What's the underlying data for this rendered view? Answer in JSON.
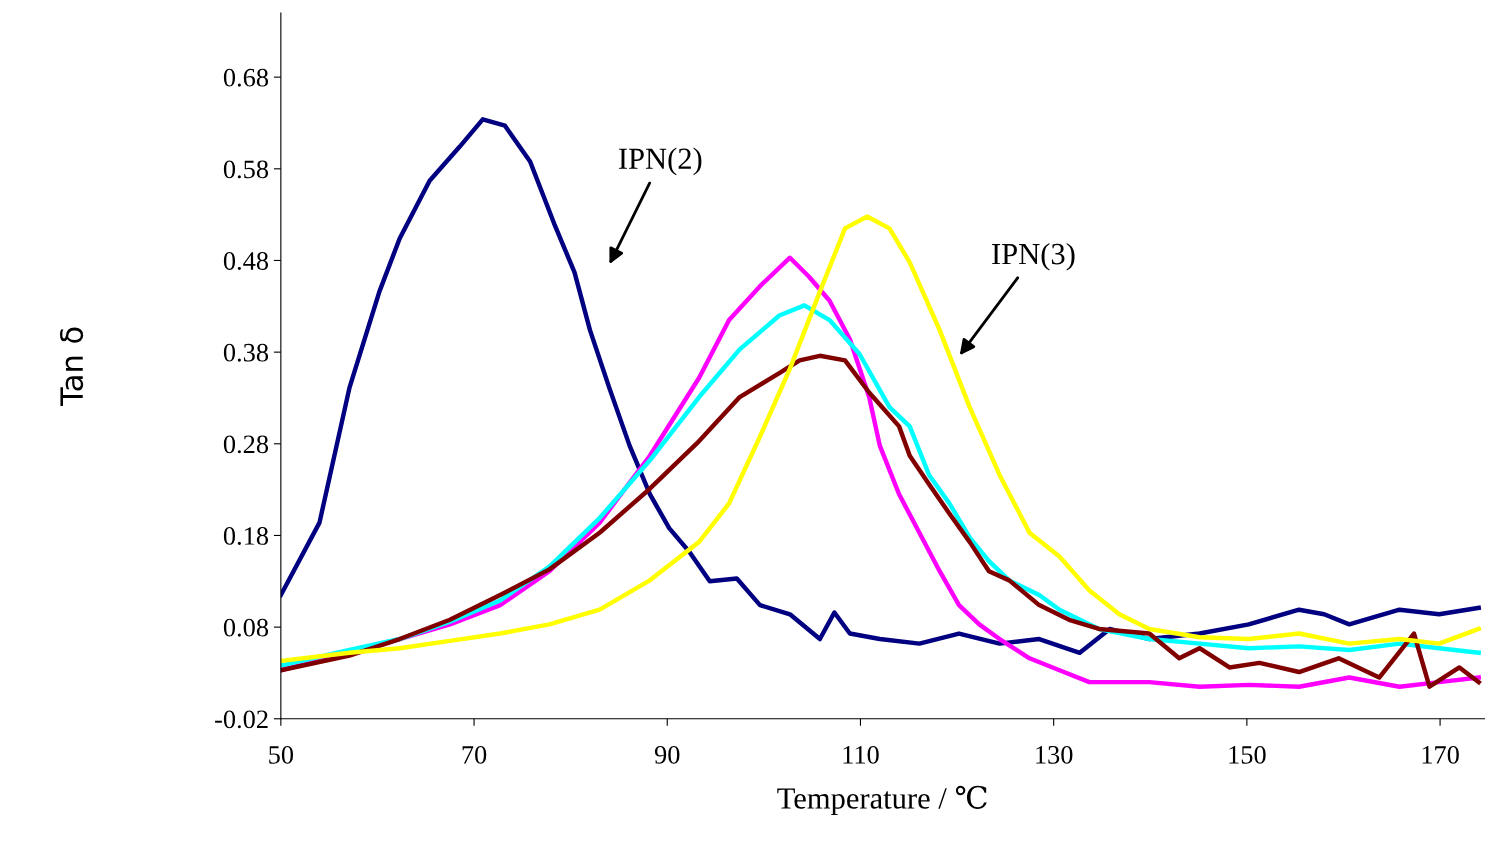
{
  "chart_data": {
    "type": "line",
    "xlabel": "Temperature / ℃",
    "ylabel": "Tan δ",
    "xlim": [
      50,
      174.6
    ],
    "ylim": [
      -0.02,
      0.75
    ],
    "xticks": [
      50,
      70,
      90,
      110,
      130,
      150,
      170
    ],
    "yticks": [
      -0.02,
      0.08,
      0.18,
      0.28,
      0.38,
      0.48,
      0.58,
      0.68
    ],
    "grid": false,
    "marker": "none",
    "line_style": "solid",
    "annotations": [
      "IPN(2)",
      "IPN(3)"
    ],
    "series": [
      {
        "color": "#000080",
        "x": [
          50,
          54,
          57.1,
          60.2,
          62.3,
          65.4,
          68.5,
          70.9,
          73.2,
          75.8,
          78.3,
          80.4,
          82,
          84,
          86.1,
          88.2,
          90.2,
          92.3,
          94.4,
          97.2,
          99.6,
          102.7,
          105.8,
          107.3,
          108.9,
          112,
          116.1,
          120.2,
          124.4,
          128.5,
          132.7,
          135.8,
          139.9,
          145.1,
          150.2,
          155.4,
          158,
          160.6,
          165.8,
          169.9,
          174
        ],
        "values": [
          0.115,
          0.194,
          0.341,
          0.446,
          0.504,
          0.567,
          0.604,
          0.634,
          0.627,
          0.588,
          0.52,
          0.467,
          0.404,
          0.341,
          0.278,
          0.225,
          0.188,
          0.162,
          0.13,
          0.133,
          0.104,
          0.094,
          0.067,
          0.096,
          0.073,
          0.067,
          0.062,
          0.073,
          0.062,
          0.067,
          0.052,
          0.078,
          0.067,
          0.073,
          0.083,
          0.099,
          0.094,
          0.083,
          0.099,
          0.094,
          0.101
        ]
      },
      {
        "color": "#ff00ff",
        "x": [
          50,
          57.1,
          62.3,
          67.5,
          72.7,
          77.8,
          83,
          88.2,
          93.3,
          96.4,
          99.6,
          102.7,
          104.7,
          106.8,
          108.9,
          110.9,
          112,
          114,
          116.1,
          118.2,
          120.2,
          122.3,
          124.4,
          127.5,
          130.6,
          133.7,
          139.9,
          145.1,
          150.2,
          155.4,
          160.6,
          165.8,
          169.9,
          174
        ],
        "values": [
          0.033,
          0.052,
          0.067,
          0.083,
          0.104,
          0.141,
          0.194,
          0.267,
          0.352,
          0.415,
          0.452,
          0.483,
          0.462,
          0.436,
          0.394,
          0.331,
          0.278,
          0.225,
          0.183,
          0.141,
          0.104,
          0.083,
          0.067,
          0.046,
          0.033,
          0.02,
          0.02,
          0.015,
          0.017,
          0.015,
          0.025,
          0.015,
          0.02,
          0.025
        ]
      },
      {
        "color": "#00ffff",
        "x": [
          50,
          57.1,
          62.3,
          67.5,
          72.7,
          77.8,
          83,
          88.2,
          93.3,
          97.5,
          101.6,
          104.2,
          106.8,
          109.9,
          113,
          115.1,
          117.1,
          119.2,
          121.3,
          123.3,
          125.4,
          128.5,
          130.6,
          134.7,
          139.9,
          145.1,
          150.2,
          155.4,
          160.6,
          165.8,
          169.9,
          174
        ],
        "values": [
          0.038,
          0.055,
          0.067,
          0.086,
          0.109,
          0.146,
          0.199,
          0.262,
          0.331,
          0.383,
          0.42,
          0.431,
          0.415,
          0.378,
          0.32,
          0.299,
          0.246,
          0.215,
          0.178,
          0.152,
          0.131,
          0.115,
          0.099,
          0.078,
          0.067,
          0.062,
          0.057,
          0.059,
          0.055,
          0.062,
          0.057,
          0.052
        ]
      },
      {
        "color": "#800000",
        "x": [
          50,
          57.1,
          62.3,
          67.5,
          72.7,
          77.8,
          83,
          88.2,
          93.3,
          97.5,
          101.6,
          103.7,
          105.8,
          108.4,
          110.9,
          114,
          115.1,
          117.1,
          119.2,
          121.3,
          123.3,
          125.4,
          128.5,
          131.6,
          134.7,
          139.9,
          143,
          145.1,
          148.2,
          151.3,
          155.4,
          159.5,
          163.7,
          167.3,
          168.9,
          172,
          174
        ],
        "values": [
          0.033,
          0.049,
          0.067,
          0.088,
          0.115,
          0.143,
          0.183,
          0.231,
          0.283,
          0.331,
          0.357,
          0.371,
          0.376,
          0.371,
          0.336,
          0.299,
          0.267,
          0.236,
          0.204,
          0.173,
          0.141,
          0.131,
          0.104,
          0.088,
          0.078,
          0.073,
          0.046,
          0.057,
          0.036,
          0.041,
          0.031,
          0.046,
          0.025,
          0.073,
          0.015,
          0.036,
          0.02
        ]
      },
      {
        "color": "#ffff00",
        "x": [
          50,
          57.1,
          62.3,
          67.5,
          72.7,
          77.8,
          83,
          88.2,
          93.3,
          96.4,
          99.6,
          102.7,
          105.8,
          108.4,
          110.7,
          113,
          115.1,
          118.2,
          121.3,
          124.4,
          127.5,
          130.6,
          133.7,
          136.8,
          139.9,
          145.1,
          150.2,
          155.4,
          160.6,
          165.8,
          169.9,
          174
        ],
        "values": [
          0.043,
          0.052,
          0.057,
          0.065,
          0.073,
          0.083,
          0.099,
          0.131,
          0.173,
          0.215,
          0.288,
          0.362,
          0.446,
          0.515,
          0.528,
          0.515,
          0.478,
          0.404,
          0.32,
          0.246,
          0.183,
          0.157,
          0.12,
          0.094,
          0.078,
          0.069,
          0.067,
          0.073,
          0.062,
          0.067,
          0.062,
          0.078
        ]
      }
    ]
  }
}
